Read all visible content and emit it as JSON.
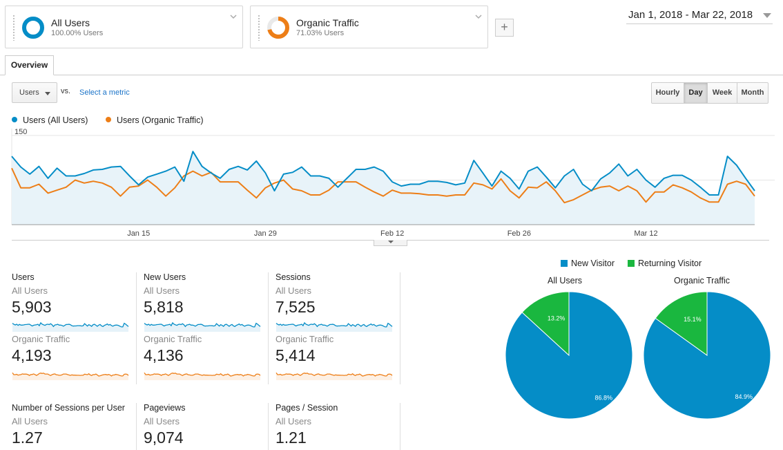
{
  "segments": [
    {
      "title": "All Users",
      "subtitle": "100.00% Users",
      "color": "#058dc7",
      "fraction": 1.0
    },
    {
      "title": "Organic Traffic",
      "subtitle": "71.03% Users",
      "color": "#ed7e17",
      "fraction": 0.7103
    }
  ],
  "add_segment_label": "+",
  "date_range": "Jan 1, 2018 - Mar 22, 2018",
  "tabs": [
    {
      "label": "Overview"
    }
  ],
  "metric_selector": {
    "value": "Users",
    "vs": "vs.",
    "select_metric": "Select a metric"
  },
  "granularity": {
    "options": [
      "Hourly",
      "Day",
      "Week",
      "Month"
    ],
    "selected": "Day"
  },
  "chart_data": {
    "type": "line",
    "legend": [
      {
        "name": "Users (All Users)",
        "color": "#058dc7"
      },
      {
        "name": "Users (Organic Traffic)",
        "color": "#ed7e17"
      }
    ],
    "ylim": [
      0,
      150
    ],
    "y_ticks": [
      150,
      75
    ],
    "x_tick_labels": [
      "Jan 15",
      "Jan 29",
      "Feb 12",
      "Feb 26",
      "Mar 12"
    ],
    "x_tick_index": [
      14,
      28,
      42,
      56,
      70
    ],
    "series": [
      {
        "name": "Users (All Users)",
        "color": "#058dc7",
        "values": [
          115,
          97,
          85,
          98,
          78,
          95,
          82,
          82,
          86,
          92,
          93,
          97,
          98,
          82,
          67,
          80,
          85,
          90,
          97,
          73,
          123,
          98,
          87,
          78,
          93,
          98,
          92,
          107,
          87,
          57,
          85,
          88,
          97,
          82,
          82,
          78,
          63,
          78,
          93,
          93,
          97,
          90,
          72,
          65,
          68,
          68,
          73,
          73,
          71,
          67,
          70,
          108,
          87,
          65,
          90,
          78,
          60,
          90,
          97,
          80,
          62,
          82,
          93,
          68,
          57,
          77,
          87,
          102,
          82,
          93,
          75,
          63,
          78,
          83,
          83,
          75,
          63,
          50,
          50,
          115,
          100,
          78,
          57
        ]
      },
      {
        "name": "Users (Organic Traffic)",
        "color": "#ed7e17",
        "values": [
          95,
          62,
          62,
          68,
          53,
          58,
          63,
          75,
          70,
          73,
          70,
          63,
          48,
          63,
          65,
          75,
          63,
          48,
          62,
          82,
          90,
          82,
          88,
          72,
          72,
          72,
          58,
          45,
          62,
          70,
          75,
          60,
          57,
          50,
          50,
          58,
          72,
          72,
          72,
          63,
          55,
          48,
          58,
          53,
          53,
          52,
          50,
          50,
          48,
          50,
          50,
          70,
          67,
          60,
          77,
          57,
          45,
          63,
          62,
          72,
          57,
          37,
          42,
          50,
          58,
          63,
          65,
          57,
          65,
          57,
          38,
          55,
          55,
          67,
          62,
          55,
          45,
          38,
          38,
          68,
          73,
          68,
          48
        ]
      }
    ]
  },
  "scorecards": [
    {
      "title": "Users",
      "rows": [
        {
          "segment": "All Users",
          "value": "5,903",
          "spark": "#058dc7"
        },
        {
          "segment": "Organic Traffic",
          "value": "4,193",
          "spark": "#ed7e17"
        }
      ]
    },
    {
      "title": "New Users",
      "rows": [
        {
          "segment": "All Users",
          "value": "5,818",
          "spark": "#058dc7"
        },
        {
          "segment": "Organic Traffic",
          "value": "4,136",
          "spark": "#ed7e17"
        }
      ]
    },
    {
      "title": "Sessions",
      "rows": [
        {
          "segment": "All Users",
          "value": "7,525",
          "spark": "#058dc7"
        },
        {
          "segment": "Organic Traffic",
          "value": "5,414",
          "spark": "#ed7e17"
        }
      ]
    },
    {
      "title": "Number of Sessions per User",
      "rows": [
        {
          "segment": "All Users",
          "value": "1.27"
        }
      ]
    },
    {
      "title": "Pageviews",
      "rows": [
        {
          "segment": "All Users",
          "value": "9,074"
        }
      ]
    },
    {
      "title": "Pages / Session",
      "rows": [
        {
          "segment": "All Users",
          "value": "1.21"
        }
      ]
    }
  ],
  "pie_legend": [
    {
      "name": "New Visitor",
      "color": "#058dc7"
    },
    {
      "name": "Returning Visitor",
      "color": "#1ab73f"
    }
  ],
  "pies": [
    {
      "title": "All Users",
      "new_pct": 86.8,
      "returning_pct": 13.2,
      "new_label": "86.8%",
      "returning_label": "13.2%"
    },
    {
      "title": "Organic Traffic",
      "new_pct": 84.9,
      "returning_pct": 15.1,
      "new_label": "84.9%",
      "returning_label": "15.1%"
    }
  ]
}
